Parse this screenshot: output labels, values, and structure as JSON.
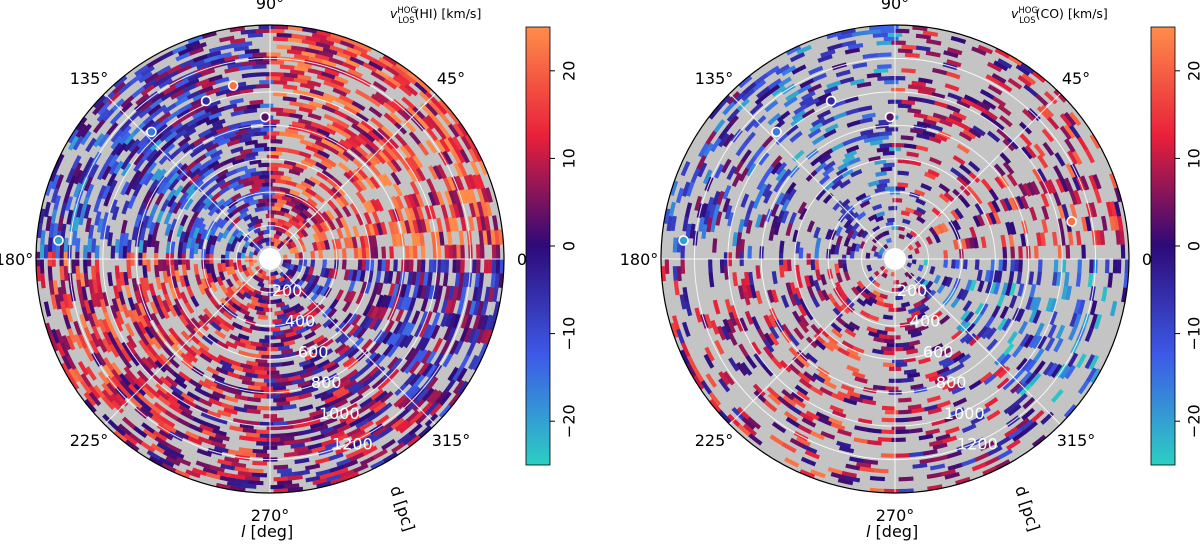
{
  "chart_data": [
    {
      "type": "heatmap",
      "projection": "polar",
      "title_prefix": "v",
      "title_sup": "HOG",
      "title_sub": "LOS",
      "title_suffix": "(HI) [km/s]",
      "xlabel_prefix": "l",
      "xlabel_suffix": " [deg]",
      "rlabel": "d [pc]",
      "theta_ticks": [
        0,
        45,
        90,
        135,
        180,
        225,
        270,
        315
      ],
      "theta_tick_labels": [
        "0°",
        "45°",
        "90°",
        "135°",
        "180°",
        "225°",
        "270°",
        "315°"
      ],
      "r_ticks": [
        200,
        400,
        600,
        800,
        1000,
        1200
      ],
      "r_tick_labels": [
        "200",
        "400",
        "600",
        "800",
        "1000",
        "1200"
      ],
      "rlim": [
        0,
        1400
      ],
      "clim": [
        -25,
        25
      ],
      "colorbar_ticks": [
        20,
        10,
        0,
        -10,
        -20
      ],
      "colorbar_tick_labels": [
        "20",
        "10",
        "0",
        "−10",
        "−20"
      ],
      "no_data_color": "#c4c4c4",
      "markers": [
        {
          "l": 102,
          "d": 1060,
          "v": 22
        },
        {
          "l": 133,
          "d": 1040,
          "v": -16
        },
        {
          "l": 112,
          "d": 1020,
          "v": -5
        },
        {
          "l": 92,
          "d": 850,
          "v": 3
        },
        {
          "l": 175,
          "d": 1270,
          "v": -20
        }
      ],
      "sample_regions": [
        {
          "l_from": 0,
          "l_to": 45,
          "trend": 16
        },
        {
          "l_from": 45,
          "l_to": 90,
          "trend": 14
        },
        {
          "l_from": 90,
          "l_to": 135,
          "trend": -3
        },
        {
          "l_from": 135,
          "l_to": 180,
          "trend": -8
        },
        {
          "l_from": 180,
          "l_to": 225,
          "trend": 12
        },
        {
          "l_from": 225,
          "l_to": 270,
          "trend": 8
        },
        {
          "l_from": 270,
          "l_to": 315,
          "trend": 4
        },
        {
          "l_from": 315,
          "l_to": 360,
          "trend": -2
        }
      ],
      "coverage": 0.62
    },
    {
      "type": "heatmap",
      "projection": "polar",
      "title_prefix": "v",
      "title_sup": "HOG",
      "title_sub": "LOS",
      "title_suffix": "(CO) [km/s]",
      "xlabel_prefix": "l",
      "xlabel_suffix": " [deg]",
      "rlabel": "d [pc]",
      "theta_ticks": [
        0,
        45,
        90,
        135,
        180,
        225,
        270,
        315
      ],
      "theta_tick_labels": [
        "0°",
        "45°",
        "90°",
        "135°",
        "180°",
        "225°",
        "270°",
        "315°"
      ],
      "r_ticks": [
        200,
        400,
        600,
        800,
        1000,
        1200
      ],
      "r_tick_labels": [
        "200",
        "400",
        "600",
        "800",
        "1000",
        "1200"
      ],
      "rlim": [
        0,
        1400
      ],
      "clim": [
        -25,
        25
      ],
      "colorbar_ticks": [
        20,
        10,
        0,
        -10,
        -20
      ],
      "colorbar_tick_labels": [
        "20",
        "10",
        "0",
        "−10",
        "−20"
      ],
      "no_data_color": "#c4c4c4",
      "markers": [
        {
          "l": 12,
          "d": 1080,
          "v": 22
        },
        {
          "l": 133,
          "d": 1040,
          "v": -16
        },
        {
          "l": 112,
          "d": 1020,
          "v": -5
        },
        {
          "l": 92,
          "d": 850,
          "v": 3
        },
        {
          "l": 175,
          "d": 1270,
          "v": -20
        }
      ],
      "sample_regions": [
        {
          "l_from": 0,
          "l_to": 45,
          "trend": 10
        },
        {
          "l_from": 45,
          "l_to": 90,
          "trend": 8
        },
        {
          "l_from": 90,
          "l_to": 135,
          "trend": -10
        },
        {
          "l_from": 135,
          "l_to": 180,
          "trend": -6
        },
        {
          "l_from": 180,
          "l_to": 225,
          "trend": 6
        },
        {
          "l_from": 225,
          "l_to": 270,
          "trend": 10
        },
        {
          "l_from": 270,
          "l_to": 315,
          "trend": 2
        },
        {
          "l_from": 315,
          "l_to": 360,
          "trend": -12
        }
      ],
      "coverage": 0.36
    }
  ]
}
